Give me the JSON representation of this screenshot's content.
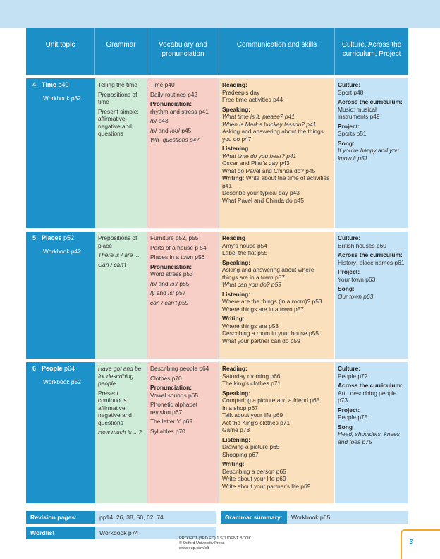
{
  "headers": [
    "Unit topic",
    "Grammar",
    "Vocabulary and pronunciation",
    "Communication and skills",
    "Culture, Across the curriculum, Project"
  ],
  "units": [
    {
      "num": "4",
      "topic": "Time",
      "page": " p40",
      "workbook": "Workbook p32",
      "grammar": [
        "Telling the time",
        "Prepositions of time",
        "Present simple: affirmative, negative and questions"
      ],
      "vocab": {
        "a": "Time p40",
        "b": "Daily routines p42",
        "pron_h": "Pronunciation:",
        "pron1": "rhythm and stress p41",
        "p2": "/ɒ/ p43",
        "p3": "/ɒ/ and /əʊ/ p45",
        "p4": "Wh- questions p47"
      },
      "comm": {
        "h1": "Reading:",
        "r1": "Pradeep's day",
        "r2": "Free time activities p44",
        "h2": "Speaking:",
        "s1": "What time is it, please? p41",
        "s2": "When is Mark's hockey lesson? p41",
        "s3": "Asking and answering about the things you do p47",
        "h3": "Listening",
        "l1": "What time do you hear? p41",
        "l2": "Oscar and Pilar's day p43",
        "l3": "What do Pavel and Chinda do? p45",
        "h4": "Writing:",
        "w1": " Write about the time of activities p41",
        "w2": "Describe your typical day p43",
        "w3": "What Pavel and Chinda do p45"
      },
      "culture": {
        "h1": "Culture:",
        "c1": "Sport p48",
        "h2": "Across the curriculum:",
        "c2": "Music: musical instruments p49",
        "h3": "Project:",
        "c3": "Sports p51",
        "h4": "Song:",
        "c4": "If you're happy and you know it p51"
      }
    },
    {
      "num": "5",
      "topic": "Places",
      "page": " p52",
      "workbook": "Workbook p42",
      "grammar": [
        "Prepositions of place",
        "There is / are ...",
        "Can / can't"
      ],
      "vocab": {
        "a": "Furniture p52, p55",
        "b": "Parts of a house p 54",
        "c": "Places in a town p56",
        "pron_h": "Pronunciation:",
        "pron1": "Word stress p53",
        "p2": "/ɒ/ and /ɔː/ p55",
        "p3": "/ʃ/ and /s/ p57",
        "p4": "can / can't p59"
      },
      "comm": {
        "h1": "Reading",
        "r1": "Amy's house p54",
        "r2": "Label the flat p55",
        "h2": "Speaking:",
        "s1": "Asking and answering about where things are in a town p57",
        "s2": "What can you do? p59",
        "h3": "Listening:",
        "l1": "Where are the things (in a room)? p53",
        "l2": "Where things are in a town p57",
        "h4": "Writing:",
        "w1": "Where things are p53",
        "w2": "Describing a room in your house p55",
        "w3": "What your partner can do p59"
      },
      "culture": {
        "h1": "Culture:",
        "c1": "British houses p60",
        "h2": "Across the curriculum:",
        "c2": "History: place names p61",
        "h3": "Project:",
        "c3": "Your town p63",
        "h4": "Song:",
        "c4": "Our town p63"
      }
    },
    {
      "num": "6",
      "topic": "People",
      "page": " p64",
      "workbook": "Workbook p52",
      "grammar": [
        "Have got and be for describing people",
        "Present continuous affirmative negative and questions",
        "How much is ...?"
      ],
      "vocab": {
        "a": "Describing people p64",
        "b": "Clothes p70",
        "pron_h": "Pronunciation:",
        "pron1": "Vowel sounds p65",
        "p2": "Phonetic alphabet revision p67",
        "p3": "The letter 'r' p69",
        "p4": "Syllables p70"
      },
      "comm": {
        "h1": "Reading:",
        "r1": "Saturday morning p66",
        "r2": "The king's clothes p71",
        "h2": "Speaking:",
        "s1": "Comparing a picture and a friend p65",
        "s2": "In a shop p67",
        "s3": "Talk about your life p69",
        "s4": "Act the King's clothes p71",
        "s5": "Game p78",
        "h3": "Listening:",
        "l1": "Drawing a picture p65",
        "l2": "Shopping p67",
        "h4": "Writing:",
        "w1": "Describing a person p65",
        "w2": "Write about your life p69",
        "w3": "Write about your partner's life p69"
      },
      "culture": {
        "h1": "Culture:",
        "c1": "People p72",
        "h2": "Across the curriculum:",
        "c2": "Art : describing people p73",
        "h3": "Project:",
        "c3": "People p75",
        "h4": "Song",
        "c4": "Head, shoulders, knees and toes p75"
      }
    }
  ],
  "bottom": {
    "revision_label": "Revision pages:",
    "revision_value": "pp14, 26, 38, 50, 62, 74",
    "grammar_label": "Grammar summary:",
    "grammar_value": "Workbook p65",
    "wordlist_label": "Wordlist",
    "wordlist_value": "Workbook p74"
  },
  "footer": {
    "line1": "PROJECT (3RD ED) 1 STUDENT BOOK",
    "line2": "© Oxford University Press",
    "line3": "www.oup.com/elt"
  },
  "page_number": "3",
  "colors": {
    "header_blue": "#1b8fc6",
    "grammar_green": "#cfecd8",
    "vocab_pink": "#f7cfc6",
    "comm_orange": "#fbe0bd",
    "culture_blue": "#c4e3f6",
    "page_accent": "#f5a623"
  }
}
